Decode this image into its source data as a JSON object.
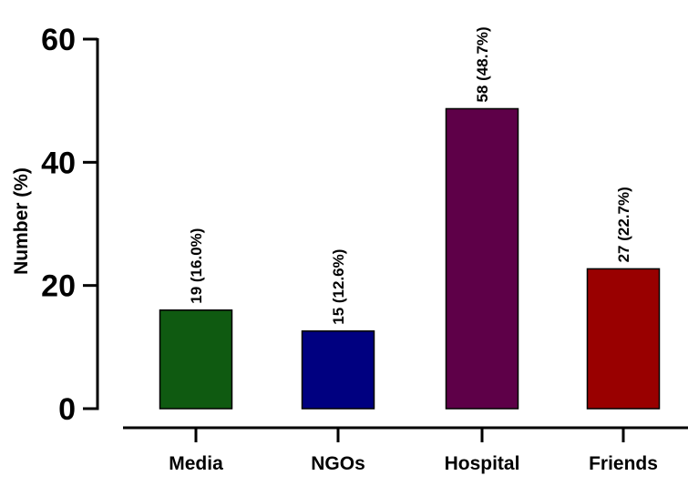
{
  "chart_data": {
    "type": "bar",
    "title": "",
    "xlabel": "",
    "ylabel": "Number (%)",
    "categories": [
      "Media",
      "NGOs",
      "Hospital",
      "Friends"
    ],
    "values": [
      16.0,
      12.6,
      48.7,
      22.7
    ],
    "data_labels": [
      "19 (16.0%)",
      "15 (12.6%)",
      "58 (48.7%)",
      "27 (22.7%)"
    ],
    "colors": [
      "#0f5a11",
      "#000080",
      "#5e0048",
      "#990000"
    ],
    "ylim": [
      0,
      60
    ],
    "yticks": [
      0,
      20,
      40,
      60
    ],
    "ytick_labels": [
      "0",
      "20",
      "40",
      "60"
    ],
    "grid": false,
    "legend": "none"
  }
}
